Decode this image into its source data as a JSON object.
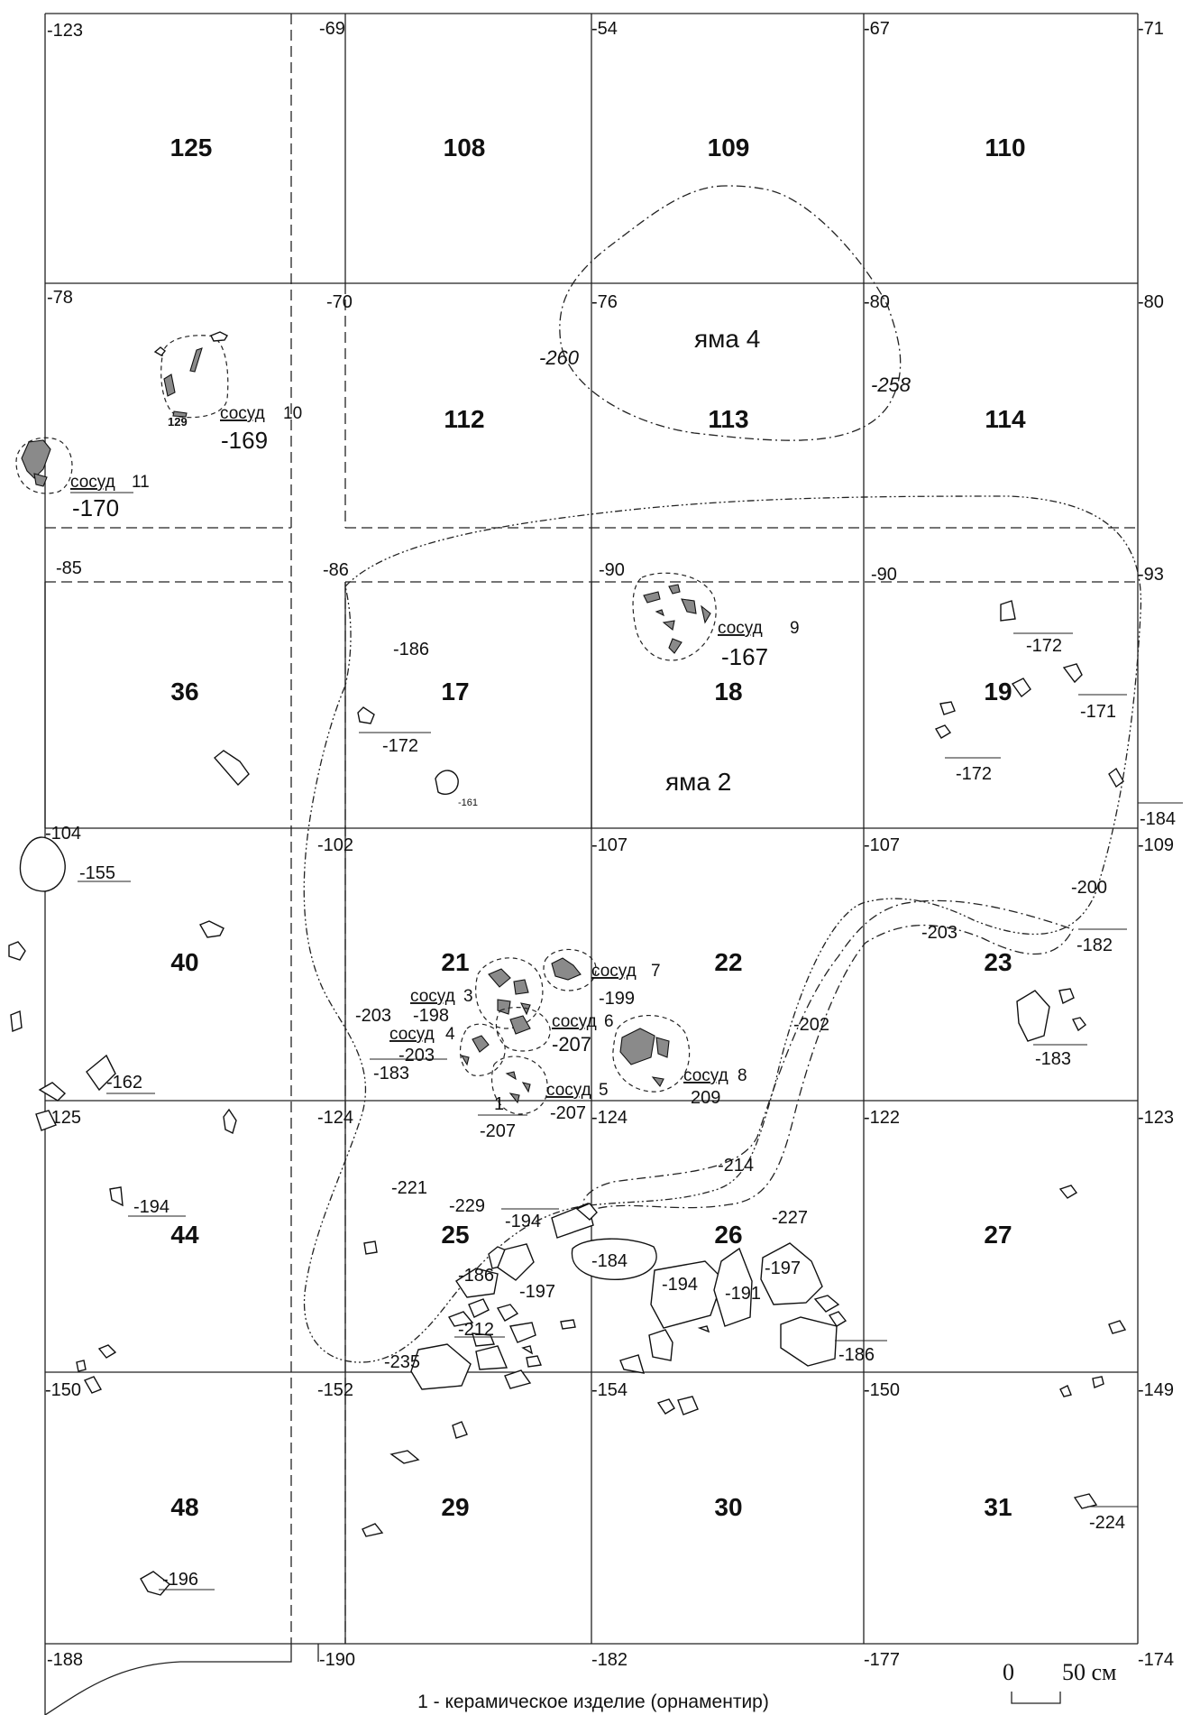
{
  "grid": {
    "squares": [
      [
        "125",
        "108",
        "109",
        "110"
      ],
      [
        "112",
        "113",
        "114"
      ],
      [
        "36",
        "17",
        "18",
        "19"
      ],
      [
        "40",
        "21",
        "22",
        "23"
      ],
      [
        "44",
        "25",
        "26",
        "27"
      ],
      [
        "48",
        "29",
        "30",
        "31"
      ]
    ],
    "corner_elevations": {
      "row0": [
        "-123",
        "-69",
        "-54",
        "-67",
        "-71"
      ],
      "row1": [
        "-78",
        "-70",
        "-76",
        "-80",
        "-80"
      ],
      "row2": [
        "-85",
        "-86",
        "-90",
        "-90",
        "-93"
      ],
      "row3": [
        "-104",
        "-102",
        "-107",
        "-107",
        "-109"
      ],
      "row4": [
        "-125",
        "-124",
        "-124",
        "-122",
        "-123"
      ],
      "row5": [
        "-150",
        "-152",
        "-154",
        "-150",
        "-149"
      ],
      "row6": [
        "-188",
        "-190",
        "-182",
        "-177",
        "-174"
      ]
    }
  },
  "pits": {
    "pit4": {
      "label": "яма 4",
      "depth_left": "-260",
      "depth_right": "-258"
    },
    "pit2": {
      "label": "яма 2"
    }
  },
  "vessels": {
    "v10": {
      "label": "сосуд",
      "num": "10",
      "depth": "-169",
      "small": "129"
    },
    "v11": {
      "label": "сосуд",
      "num": "11",
      "depth": "-170"
    },
    "v9": {
      "label": "сосуд",
      "num": "9",
      "depth": "-167"
    },
    "v7": {
      "label": "сосуд",
      "num": "7",
      "depth": "-199"
    },
    "v3": {
      "label": "сосуд",
      "num": "3",
      "depth": "-198"
    },
    "v6": {
      "label": "сосуд",
      "num": "6",
      "depth": "-207"
    },
    "v4": {
      "label": "сосуд",
      "num": "4",
      "depth": "-203"
    },
    "v8": {
      "label": "сосуд",
      "num": "8",
      "depth": "209"
    },
    "v5": {
      "label": "сосуд",
      "num": "5",
      "depth": "-207"
    }
  },
  "depth_marks": {
    "d186": "-186",
    "d172a": "-172",
    "d161": "-161",
    "d172b": "-172",
    "d171": "-171",
    "d172c": "-172",
    "d184": "-184",
    "d155": "-155",
    "d200": "-200",
    "d203a": "-203",
    "d182": "-182",
    "d202": "-202",
    "d183a": "-183",
    "d203b": "-203",
    "d183b": "-183",
    "d162": "-162",
    "d1": "1",
    "d207": "-207",
    "d214": "-214",
    "d221": "-221",
    "d229": "-229",
    "d194a": "-194",
    "d227": "-227",
    "d194b": "-194",
    "d184b": "-184",
    "d197a": "-197",
    "d186b": "-186",
    "d197b": "-197",
    "d194c": "-194",
    "d191": "-191",
    "d186c": "-186",
    "d212": "-212",
    "d235": "-235",
    "d224": "-224",
    "d196": "-196"
  },
  "scale_bar": {
    "zero": "0",
    "label": "50 см"
  },
  "legend": {
    "item1": "1 - керамическое изделие (орнаментир)"
  }
}
